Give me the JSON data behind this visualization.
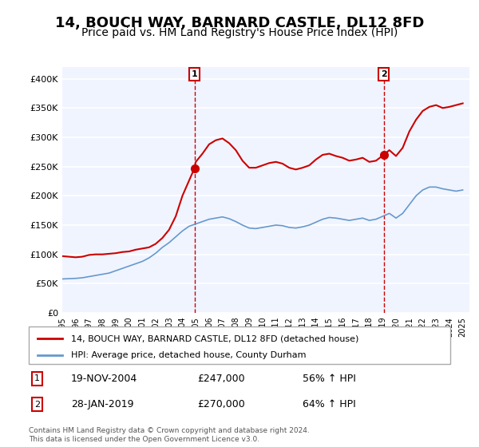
{
  "title": "14, BOUCH WAY, BARNARD CASTLE, DL12 8FD",
  "subtitle": "Price paid vs. HM Land Registry's House Price Index (HPI)",
  "title_fontsize": 13,
  "subtitle_fontsize": 10,
  "red_label": "14, BOUCH WAY, BARNARD CASTLE, DL12 8FD (detached house)",
  "blue_label": "HPI: Average price, detached house, County Durham",
  "sale1_label": "1",
  "sale1_date": "19-NOV-2004",
  "sale1_price": "£247,000",
  "sale1_pct": "56% ↑ HPI",
  "sale2_label": "2",
  "sale2_date": "28-JAN-2019",
  "sale2_price": "£270,000",
  "sale2_pct": "64% ↑ HPI",
  "footer1": "Contains HM Land Registry data © Crown copyright and database right 2024.",
  "footer2": "This data is licensed under the Open Government Licence v3.0.",
  "ylim": [
    0,
    420000
  ],
  "yticks": [
    0,
    50000,
    100000,
    150000,
    200000,
    250000,
    300000,
    350000,
    400000
  ],
  "ytick_labels": [
    "£0",
    "£50K",
    "£100K",
    "£150K",
    "£200K",
    "£250K",
    "£300K",
    "£350K",
    "£400K"
  ],
  "xlim_start": 1995.0,
  "xlim_end": 2025.5,
  "xticks": [
    1995,
    1996,
    1997,
    1998,
    1999,
    2000,
    2001,
    2002,
    2003,
    2004,
    2005,
    2006,
    2007,
    2008,
    2009,
    2010,
    2011,
    2012,
    2013,
    2014,
    2015,
    2016,
    2017,
    2018,
    2019,
    2020,
    2021,
    2022,
    2023,
    2024,
    2025
  ],
  "red_color": "#cc0000",
  "blue_color": "#6699cc",
  "background_color": "#f0f4ff",
  "plot_bg": "#f0f4ff",
  "grid_color": "#ffffff",
  "sale1_x": 2004.9,
  "sale1_y": 247000,
  "sale2_x": 2019.08,
  "sale2_y": 270000,
  "red_x": [
    1995.0,
    1995.5,
    1996.0,
    1996.5,
    1997.0,
    1997.5,
    1998.0,
    1998.5,
    1999.0,
    1999.5,
    2000.0,
    2000.5,
    2001.0,
    2001.5,
    2002.0,
    2002.5,
    2003.0,
    2003.5,
    2004.0,
    2004.9,
    2005.0,
    2005.5,
    2006.0,
    2006.5,
    2007.0,
    2007.5,
    2008.0,
    2008.5,
    2009.0,
    2009.5,
    2010.0,
    2010.5,
    2011.0,
    2011.5,
    2012.0,
    2012.5,
    2013.0,
    2013.5,
    2014.0,
    2014.5,
    2015.0,
    2015.5,
    2016.0,
    2016.5,
    2017.0,
    2017.5,
    2018.0,
    2018.5,
    2019.08,
    2019.5,
    2020.0,
    2020.5,
    2021.0,
    2021.5,
    2022.0,
    2022.5,
    2023.0,
    2023.5,
    2024.0,
    2024.5,
    2025.0
  ],
  "red_y": [
    97000,
    96000,
    95000,
    96000,
    99000,
    100000,
    100000,
    101000,
    102000,
    104000,
    105000,
    108000,
    110000,
    112000,
    118000,
    128000,
    142000,
    165000,
    200000,
    247000,
    258000,
    272000,
    288000,
    295000,
    298000,
    290000,
    278000,
    260000,
    248000,
    248000,
    252000,
    256000,
    258000,
    255000,
    248000,
    245000,
    248000,
    252000,
    262000,
    270000,
    272000,
    268000,
    265000,
    260000,
    262000,
    265000,
    258000,
    260000,
    270000,
    278000,
    268000,
    282000,
    310000,
    330000,
    345000,
    352000,
    355000,
    350000,
    352000,
    355000,
    358000
  ],
  "blue_x": [
    1995.0,
    1995.5,
    1996.0,
    1996.5,
    1997.0,
    1997.5,
    1998.0,
    1998.5,
    1999.0,
    1999.5,
    2000.0,
    2000.5,
    2001.0,
    2001.5,
    2002.0,
    2002.5,
    2003.0,
    2003.5,
    2004.0,
    2004.5,
    2005.0,
    2005.5,
    2006.0,
    2006.5,
    2007.0,
    2007.5,
    2008.0,
    2008.5,
    2009.0,
    2009.5,
    2010.0,
    2010.5,
    2011.0,
    2011.5,
    2012.0,
    2012.5,
    2013.0,
    2013.5,
    2014.0,
    2014.5,
    2015.0,
    2015.5,
    2016.0,
    2016.5,
    2017.0,
    2017.5,
    2018.0,
    2018.5,
    2019.0,
    2019.5,
    2020.0,
    2020.5,
    2021.0,
    2021.5,
    2022.0,
    2022.5,
    2023.0,
    2023.5,
    2024.0,
    2024.5,
    2025.0
  ],
  "blue_y": [
    58000,
    58500,
    59000,
    60000,
    62000,
    64000,
    66000,
    68000,
    72000,
    76000,
    80000,
    84000,
    88000,
    94000,
    102000,
    112000,
    120000,
    130000,
    140000,
    148000,
    152000,
    156000,
    160000,
    162000,
    164000,
    161000,
    156000,
    150000,
    145000,
    144000,
    146000,
    148000,
    150000,
    149000,
    146000,
    145000,
    147000,
    150000,
    155000,
    160000,
    163000,
    162000,
    160000,
    158000,
    160000,
    162000,
    158000,
    160000,
    165000,
    170000,
    162000,
    170000,
    185000,
    200000,
    210000,
    215000,
    215000,
    212000,
    210000,
    208000,
    210000
  ]
}
